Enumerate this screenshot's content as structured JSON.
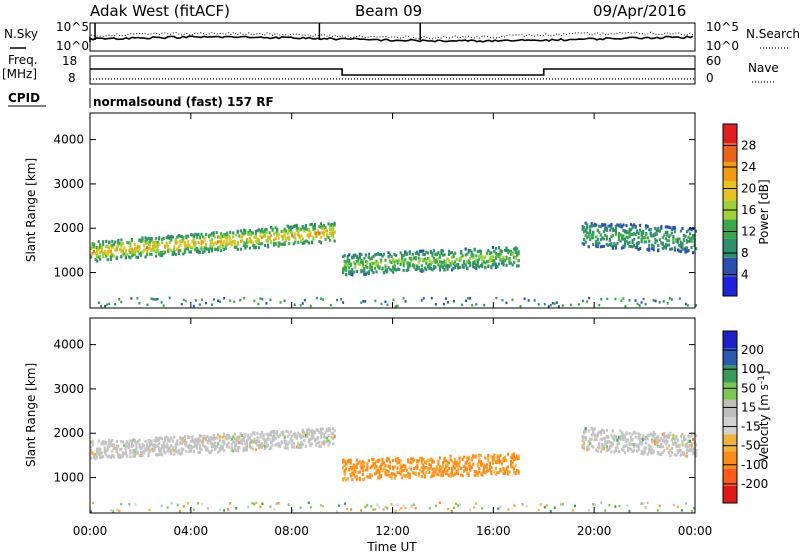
{
  "header": {
    "station": "Adak West (fitACF)",
    "beam": "Beam 09",
    "date": "09/Apr/2016"
  },
  "left_labels": {
    "nsky": "N.Sky",
    "freq": "Freq.",
    "freq_unit": "[MHz]",
    "cpid": "CPID"
  },
  "right_labels": {
    "nsearch": "N.Search",
    "nave": "Nave"
  },
  "noise_axis": {
    "left_ticks": [
      "10^5",
      "10^0"
    ],
    "right_ticks": [
      "10^5",
      "10^0"
    ]
  },
  "freq_axis": {
    "left_ticks": [
      "18",
      "8"
    ],
    "right_ticks": [
      "60",
      "0"
    ]
  },
  "cpid_text": "normalsound (fast) 157 RF",
  "colors": {
    "frame": "#000000",
    "power_scale": [
      "#2020e0",
      "#2a4fb0",
      "#2e8f6a",
      "#3aa84a",
      "#9ed23a",
      "#e8c21e",
      "#f39c12",
      "#e8641a",
      "#e02020"
    ],
    "velocity_scale": [
      "#e01818",
      "#ff5a1a",
      "#ff8c1a",
      "#f0b23a",
      "#d2d2d2",
      "#bebebe",
      "#7ec850",
      "#3a9a5a",
      "#2a5ab0",
      "#2020c8"
    ],
    "ground_scatter": "#c4c4c4"
  },
  "chart_data": [
    {
      "type": "heatmap",
      "name": "power-panel",
      "ylabel": "Slant Range [km]",
      "yticks": [
        "1000",
        "2000",
        "3000",
        "4000"
      ],
      "ylim": [
        200,
        4600
      ],
      "xlim": [
        0,
        24
      ],
      "colorbar": {
        "label": "Power [dB]",
        "ticks": [
          "4",
          "8",
          "12",
          "16",
          "20",
          "24",
          "28"
        ]
      },
      "scatter_regions": [
        {
          "t_start": 0.0,
          "t_end": 9.7,
          "range_center_start": 1500,
          "range_center_end": 1950,
          "half_width": 220,
          "value_hi": 26,
          "value_lo": 8
        },
        {
          "t_start": 10.0,
          "t_end": 17.0,
          "range_center_start": 1200,
          "range_center_end": 1400,
          "half_width": 230,
          "value_hi": 18,
          "value_lo": 7
        },
        {
          "t_start": 19.5,
          "t_end": 24.0,
          "range_center_start": 1900,
          "range_center_end": 1750,
          "half_width": 280,
          "value_hi": 14,
          "value_lo": 6
        }
      ]
    },
    {
      "type": "heatmap",
      "name": "velocity-panel",
      "ylabel": "Slant Range [km]",
      "yticks": [
        "1000",
        "2000",
        "3000",
        "4000"
      ],
      "ylim": [
        200,
        4600
      ],
      "xlim": [
        0,
        24
      ],
      "xlabel": "Time UT",
      "xticks": [
        "00:00",
        "04:00",
        "08:00",
        "12:00",
        "16:00",
        "20:00",
        "00:00"
      ],
      "colorbar": {
        "label": "Velocity [m s^-1]",
        "ticks": [
          "200",
          "100",
          "50",
          "15",
          "-15",
          "-50",
          "-100",
          "-200"
        ]
      },
      "scatter_regions": [
        {
          "t_start": 0.0,
          "t_end": 9.7,
          "range_center_start": 1650,
          "range_center_end": 1950,
          "half_width": 200,
          "value": "ground"
        },
        {
          "t_start": 10.0,
          "t_end": 17.0,
          "range_center_start": 1200,
          "range_center_end": 1350,
          "half_width": 230,
          "value": -60
        },
        {
          "t_start": 19.5,
          "t_end": 24.0,
          "range_center_start": 1900,
          "range_center_end": 1750,
          "half_width": 260,
          "value": "ground"
        }
      ]
    },
    {
      "type": "line",
      "name": "frequency",
      "series": [
        {
          "x": [
            0,
            10,
            10,
            18,
            18,
            24
          ],
          "y": [
            13.5,
            13.5,
            10.5,
            10.5,
            13.5,
            13.5
          ]
        }
      ]
    }
  ]
}
